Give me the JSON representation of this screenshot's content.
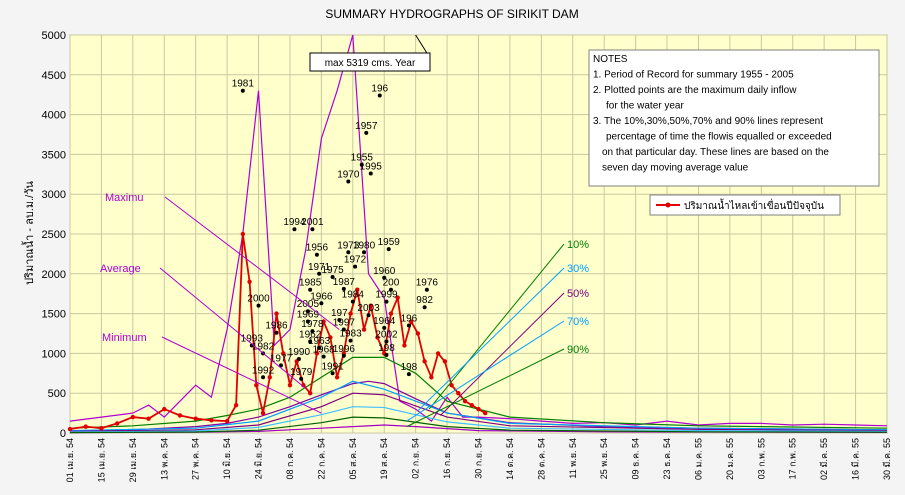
{
  "chart_data": {
    "type": "line",
    "title": "SUMMARY HYDROGRAPHS OF SIRIKIT DAM",
    "ylabel": "ปริมาณน้ำ - ลบ.ม./วัน",
    "ylim": [
      0,
      5000
    ],
    "yticks": [
      0,
      500,
      1000,
      1500,
      2000,
      2500,
      3000,
      3500,
      4000,
      4500,
      5000
    ],
    "xticks": [
      "01 เม.ย. 54",
      "15 เม.ย. 54",
      "29 เม.ย. 54",
      "13 พ.ค. 54",
      "27 พ.ค. 54",
      "10 มิ.ย. 54",
      "24 มิ.ย. 54",
      "08 ก.ค. 54",
      "22 ก.ค. 54",
      "05 ส.ค. 54",
      "19 ส.ค. 54",
      "02 ก.ย. 54",
      "16 ก.ย. 54",
      "30 ก.ย. 54",
      "14 ต.ค. 54",
      "28 ต.ค. 54",
      "11 พ.ย. 54",
      "25 พ.ย. 54",
      "09 ธ.ค. 54",
      "23 ธ.ค. 54",
      "06 ม.ค. 55",
      "20 ม.ค. 55",
      "03 ก.พ. 55",
      "17 ก.พ. 55",
      "02 มี.ค. 55",
      "16 มี.ค. 55",
      "30 มี.ค. 55"
    ],
    "grid": true,
    "legend": {
      "position": "right",
      "entries": [
        "ปริมาณน้ำไหลเข้าเขื่อนปีปัจจุบัน"
      ]
    },
    "series": [
      {
        "name": "Maximu",
        "color": "#b000d0",
        "x": [
          0,
          14,
          28,
          35,
          42,
          56,
          63,
          70,
          77,
          84,
          91,
          98,
          105,
          112,
          119,
          126,
          133,
          140,
          147,
          154,
          161,
          168,
          175,
          182,
          196,
          210,
          224,
          238,
          252,
          266,
          280,
          294,
          308,
          322,
          336,
          350,
          364
        ],
        "y": [
          150,
          200,
          250,
          350,
          200,
          600,
          450,
          1300,
          2500,
          4300,
          1100,
          1300,
          2300,
          3700,
          4300,
          5000,
          2000,
          1700,
          400,
          300,
          150,
          450,
          200,
          200,
          180,
          150,
          120,
          130,
          100,
          150,
          100,
          120,
          120,
          100,
          110,
          100,
          90
        ]
      },
      {
        "name": "Average",
        "color": "#8000a0",
        "x": [
          0,
          28,
          56,
          70,
          84,
          98,
          112,
          126,
          133,
          140,
          154,
          168,
          196,
          238,
          280,
          322,
          364
        ],
        "y": [
          20,
          40,
          80,
          120,
          200,
          330,
          480,
          620,
          650,
          620,
          430,
          250,
          130,
          80,
          60,
          50,
          40
        ]
      },
      {
        "name": "Minimum",
        "color": "#a000c0",
        "x": [
          0,
          56,
          84,
          98,
          112,
          126,
          140,
          154,
          182,
          238,
          364
        ],
        "y": [
          5,
          10,
          20,
          40,
          60,
          80,
          100,
          80,
          30,
          15,
          8
        ]
      },
      {
        "name": "10%",
        "color": "#008000",
        "x": [
          0,
          28,
          56,
          70,
          84,
          98,
          112,
          126,
          140,
          154,
          168,
          196,
          238,
          280,
          364
        ],
        "y": [
          60,
          90,
          150,
          220,
          300,
          450,
          700,
          950,
          950,
          750,
          400,
          200,
          130,
          90,
          60
        ]
      },
      {
        "name": "30%",
        "color": "#00a0ff",
        "x": [
          0,
          56,
          84,
          112,
          126,
          140,
          168,
          196,
          280,
          364
        ],
        "y": [
          30,
          60,
          150,
          450,
          650,
          550,
          250,
          120,
          60,
          40
        ]
      },
      {
        "name": "50%",
        "color": "#800080",
        "x": [
          0,
          56,
          84,
          112,
          126,
          140,
          168,
          196,
          280,
          364
        ],
        "y": [
          20,
          40,
          100,
          330,
          500,
          480,
          200,
          90,
          45,
          30
        ]
      },
      {
        "name": "70%",
        "color": "#40c0ff",
        "x": [
          0,
          56,
          84,
          112,
          126,
          140,
          168,
          196,
          280,
          364
        ],
        "y": [
          12,
          25,
          70,
          230,
          330,
          320,
          140,
          60,
          30,
          20
        ]
      },
      {
        "name": "90%",
        "color": "#006000",
        "x": [
          0,
          56,
          84,
          112,
          126,
          140,
          168,
          196,
          280,
          364
        ],
        "y": [
          5,
          12,
          35,
          130,
          200,
          190,
          80,
          35,
          15,
          10
        ]
      },
      {
        "name": "ปริมาณน้ำไหลเข้าเขื่อนปีปัจจุบัน",
        "color": "#e00000",
        "x": [
          0,
          7,
          14,
          21,
          28,
          35,
          42,
          49,
          56,
          63,
          70,
          74,
          77,
          80,
          83,
          86,
          89,
          92,
          95,
          98,
          101,
          104,
          107,
          110,
          113,
          116,
          119,
          122,
          125,
          128,
          131,
          134,
          137,
          140,
          143,
          146,
          149,
          152,
          155,
          158,
          161,
          164,
          167,
          170,
          173,
          176,
          179,
          182,
          185
        ],
        "y": [
          50,
          80,
          60,
          120,
          200,
          180,
          300,
          220,
          180,
          160,
          150,
          350,
          2500,
          1900,
          600,
          250,
          700,
          1500,
          1000,
          600,
          900,
          600,
          500,
          1000,
          1400,
          1200,
          700,
          1000,
          1500,
          1800,
          1300,
          1600,
          1200,
          1000,
          1500,
          1700,
          1100,
          1400,
          1250,
          900,
          700,
          1000,
          900,
          600,
          500,
          400,
          350,
          300,
          250
        ]
      }
    ],
    "point_labels": [
      {
        "text": "1981",
        "x": 77,
        "y": 4300
      },
      {
        "text": "2000",
        "x": 84,
        "y": 1600
      },
      {
        "text": "1993",
        "x": 81,
        "y": 1100
      },
      {
        "text": "1982",
        "x": 86,
        "y": 1000
      },
      {
        "text": "1992",
        "x": 86,
        "y": 700
      },
      {
        "text": "1986",
        "x": 92,
        "y": 1260
      },
      {
        "text": "1977",
        "x": 94,
        "y": 850
      },
      {
        "text": "1979",
        "x": 103,
        "y": 680
      },
      {
        "text": "1994",
        "x": 100,
        "y": 2560
      },
      {
        "text": "2001",
        "x": 108,
        "y": 2560
      },
      {
        "text": "1956",
        "x": 110,
        "y": 2240
      },
      {
        "text": "1971",
        "x": 111,
        "y": 2000
      },
      {
        "text": "1985",
        "x": 107,
        "y": 1800
      },
      {
        "text": "1966",
        "x": 112,
        "y": 1630
      },
      {
        "text": "2005",
        "x": 106,
        "y": 1530
      },
      {
        "text": "1969",
        "x": 106,
        "y": 1400
      },
      {
        "text": "1978",
        "x": 108,
        "y": 1280
      },
      {
        "text": "1962",
        "x": 107,
        "y": 1150
      },
      {
        "text": "1990",
        "x": 102,
        "y": 930
      },
      {
        "text": "1963",
        "x": 111,
        "y": 1070
      },
      {
        "text": "1968",
        "x": 113,
        "y": 960
      },
      {
        "text": "1991",
        "x": 117,
        "y": 750
      },
      {
        "text": "1970",
        "x": 124,
        "y": 3160
      },
      {
        "text": "1955",
        "x": 130,
        "y": 3370
      },
      {
        "text": "1995",
        "x": 134,
        "y": 3260
      },
      {
        "text": "1957",
        "x": 132,
        "y": 3770
      },
      {
        "text": "196",
        "x": 138,
        "y": 4240
      },
      {
        "text": "1973",
        "x": 124,
        "y": 2270
      },
      {
        "text": "1980",
        "x": 131,
        "y": 2270
      },
      {
        "text": "1959",
        "x": 142,
        "y": 2310
      },
      {
        "text": "1975",
        "x": 117,
        "y": 1960
      },
      {
        "text": "1972",
        "x": 127,
        "y": 2090
      },
      {
        "text": "1960",
        "x": 140,
        "y": 1950
      },
      {
        "text": "1987",
        "x": 122,
        "y": 1810
      },
      {
        "text": "1984",
        "x": 126,
        "y": 1650
      },
      {
        "text": "1999",
        "x": 141,
        "y": 1650
      },
      {
        "text": "197",
        "x": 120,
        "y": 1420
      },
      {
        "text": "2003",
        "x": 133,
        "y": 1480
      },
      {
        "text": "1997",
        "x": 122,
        "y": 1300
      },
      {
        "text": "1964",
        "x": 140,
        "y": 1320
      },
      {
        "text": "1983",
        "x": 125,
        "y": 1160
      },
      {
        "text": "2002",
        "x": 141,
        "y": 1150
      },
      {
        "text": "1996",
        "x": 122,
        "y": 970
      },
      {
        "text": "198",
        "x": 141,
        "y": 980
      },
      {
        "text": "1976",
        "x": 159,
        "y": 1800
      },
      {
        "text": "982",
        "x": 158,
        "y": 1580
      },
      {
        "text": "196",
        "x": 151,
        "y": 1350
      },
      {
        "text": "198",
        "x": 151,
        "y": 740
      },
      {
        "text": "200",
        "x": 143,
        "y": 1800
      }
    ],
    "annotations": {
      "max_label": "max 5319 cms. Year",
      "notes": [
        "NOTES",
        "1. Period of Record for summary 1955 - 2005",
        "2. Plotted points are the maximum daily inflow",
        "for the water year",
        "3.  The  10%,30%,50%,70% and 90% lines represent",
        "percentage of time the flowis equalled or exceeded",
        "on that particular day. These lines are based on the",
        "seven day moving average value"
      ],
      "series_tags": [
        {
          "text": "Maximu",
          "color": "#b000d0",
          "side": "left"
        },
        {
          "text": "Average",
          "color": "#b000d0",
          "side": "left"
        },
        {
          "text": "Minimum",
          "color": "#b000d0",
          "side": "left"
        },
        {
          "text": "10%",
          "color": "#008000",
          "side": "right"
        },
        {
          "text": "30%",
          "color": "#00a0ff",
          "side": "right"
        },
        {
          "text": "50%",
          "color": "#800080",
          "side": "right"
        },
        {
          "text": "70%",
          "color": "#00a0ff",
          "side": "right"
        },
        {
          "text": "90%",
          "color": "#008000",
          "side": "right"
        }
      ]
    },
    "colors": {
      "plot_bg": "#ffffcc",
      "grid": "#c8c8a0",
      "current": "#e00000"
    }
  }
}
